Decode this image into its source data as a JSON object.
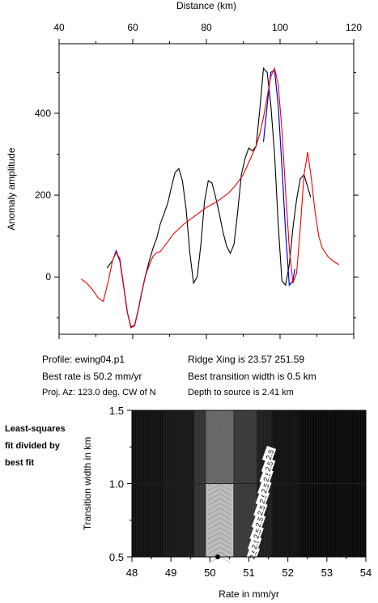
{
  "chart_data": [
    {
      "type": "line",
      "title": "",
      "xlabel": "Distance (km)",
      "ylabel": "Anomaly amplitude",
      "xlim": [
        40,
        120
      ],
      "ylim": [
        -140,
        570
      ],
      "xticks": [
        40,
        60,
        80,
        100,
        120
      ],
      "yticks": [
        0,
        200,
        400
      ],
      "grid": false,
      "series": [
        {
          "color": "#000000",
          "x": [
            53,
            54.5,
            55.5,
            56.5,
            57.5,
            58.5,
            59.5,
            60.5,
            61.5,
            62.5,
            63.5,
            64.5,
            65.5,
            66.5,
            67.5,
            68.5,
            69.5,
            70.5,
            71.5,
            72.5,
            73.5,
            74.5,
            75.5,
            76.5,
            77.5,
            78.5,
            79.5,
            80.5,
            81.5,
            82.5,
            83.5,
            84.5,
            85.5,
            86.5,
            87.5,
            88.5,
            89.5,
            90.5,
            91.5,
            92.5,
            93.5,
            94.5,
            95.5,
            96.5,
            97.5,
            98.5,
            99.5,
            100.5,
            101.5,
            102.5,
            103.5,
            104.5,
            105.5,
            106.5,
            107.5,
            108.3
          ],
          "y": [
            22,
            40,
            62,
            40,
            -20,
            -85,
            -122,
            -118,
            -80,
            -35,
            5,
            40,
            70,
            95,
            130,
            155,
            180,
            220,
            255,
            265,
            235,
            165,
            60,
            -15,
            0,
            80,
            185,
            235,
            230,
            195,
            155,
            110,
            75,
            58,
            80,
            160,
            250,
            290,
            315,
            308,
            320,
            410,
            510,
            500,
            420,
            300,
            130,
            -10,
            -20,
            30,
            120,
            190,
            240,
            250,
            220,
            195
          ]
        },
        {
          "color": "#0000dd",
          "x": [
            55,
            55.5,
            56.5,
            57.5,
            58.5,
            59.5,
            60.5,
            61.5,
            62.5,
            63.5,
            64.5,
            95.5,
            96.5,
            97.5,
            98.5,
            99.5,
            100.5,
            101.5,
            102.5,
            103.5,
            104
          ],
          "y": [
            52,
            64,
            40,
            -20,
            -85,
            -123,
            -119,
            -80,
            -35,
            5,
            30,
            330,
            420,
            500,
            505,
            420,
            270,
            110,
            -20,
            -10,
            20
          ]
        },
        {
          "color": "#ee0000",
          "x": [
            46,
            47.5,
            49,
            50.5,
            52,
            53.5,
            54.5,
            55.5,
            56.5,
            57.5,
            58.5,
            59.5,
            60.5,
            61.5,
            62.5,
            63.5,
            64.5,
            65.5,
            66.5,
            67.5,
            69,
            71,
            74,
            77,
            80,
            83,
            86,
            88,
            90,
            92,
            93.5,
            94.5,
            95.5,
            96.5,
            97.5,
            98.5,
            99.5,
            100.5,
            101.5,
            102.5,
            103.5,
            104.5,
            105.5,
            106.5,
            107.5,
            108.5,
            109.5,
            110.5,
            111.5,
            113,
            114.5,
            116
          ],
          "y": [
            -5,
            -15,
            -30,
            -50,
            -60,
            -5,
            40,
            60,
            45,
            -20,
            -85,
            -124,
            -119,
            -80,
            -35,
            5,
            30,
            50,
            60,
            62,
            80,
            105,
            130,
            150,
            170,
            185,
            205,
            225,
            250,
            290,
            320,
            350,
            390,
            440,
            490,
            510,
            470,
            360,
            210,
            70,
            -15,
            10,
            120,
            250,
            305,
            240,
            160,
            100,
            70,
            50,
            38,
            30
          ]
        }
      ],
      "annotations": [
        "Profile: ewing04.p1",
        "Best rate is 50.2 mm/yr",
        "Proj. Az: 123.0 deg. CW of N",
        "Ridge Xing is 23.57 251.59",
        "Best transition width is 0.5 km",
        "Depth to source is   2.41 km"
      ]
    },
    {
      "type": "heatmap",
      "title": "Least-squares fit divided by best fit",
      "xlabel": "Rate in mm/yr",
      "ylabel": "Transition width in km",
      "xlim": [
        48,
        54
      ],
      "ylim": [
        0.5,
        1.5
      ],
      "xticks": [
        48,
        49,
        50,
        51,
        52,
        53,
        54
      ],
      "yticks": [
        0.5,
        1.0,
        1.5
      ],
      "colorscale": [
        "#ffffff",
        "#000000"
      ],
      "best_fit": {
        "x": 50.2,
        "y": 0.5
      },
      "contour_label": "2.5",
      "contour_points": [
        {
          "x": 51.1,
          "y": 0.52
        },
        {
          "x": 51.15,
          "y": 0.59
        },
        {
          "x": 51.2,
          "y": 0.66
        },
        {
          "x": 51.25,
          "y": 0.74
        },
        {
          "x": 51.3,
          "y": 0.82
        },
        {
          "x": 51.35,
          "y": 0.9
        },
        {
          "x": 51.4,
          "y": 0.97
        },
        {
          "x": 51.45,
          "y": 1.05
        },
        {
          "x": 51.5,
          "y": 1.12
        },
        {
          "x": 51.52,
          "y": 1.2
        }
      ],
      "bands": [
        {
          "x0": 48.0,
          "x1": 48.8,
          "shade": 0.1
        },
        {
          "x0": 48.8,
          "x1": 49.6,
          "shade": 0.15
        },
        {
          "x0": 49.6,
          "x1": 49.9,
          "shade": 0.35
        },
        {
          "x0": 49.9,
          "x1": 50.6,
          "shade": 0.75
        },
        {
          "x0": 50.6,
          "x1": 51.2,
          "shade": 0.4
        },
        {
          "x0": 51.2,
          "x1": 51.6,
          "shade": 0.2
        },
        {
          "x0": 51.6,
          "x1": 52.3,
          "shade": 0.1
        },
        {
          "x0": 52.3,
          "x1": 54.0,
          "shade": 0.05
        }
      ]
    }
  ],
  "side_label": [
    "Least-squares",
    "fit divided by",
    "best fit"
  ],
  "info": {
    "profile": "Profile: ewing04.p1",
    "best_rate": "Best rate is 50.2 mm/yr",
    "proj_az": "Proj. Az: 123.0 deg. CW of N",
    "ridge_xing": "Ridge Xing is 23.57 251.59",
    "best_width": "Best transition width is 0.5 km",
    "depth": "Depth to source is   2.41 km"
  }
}
